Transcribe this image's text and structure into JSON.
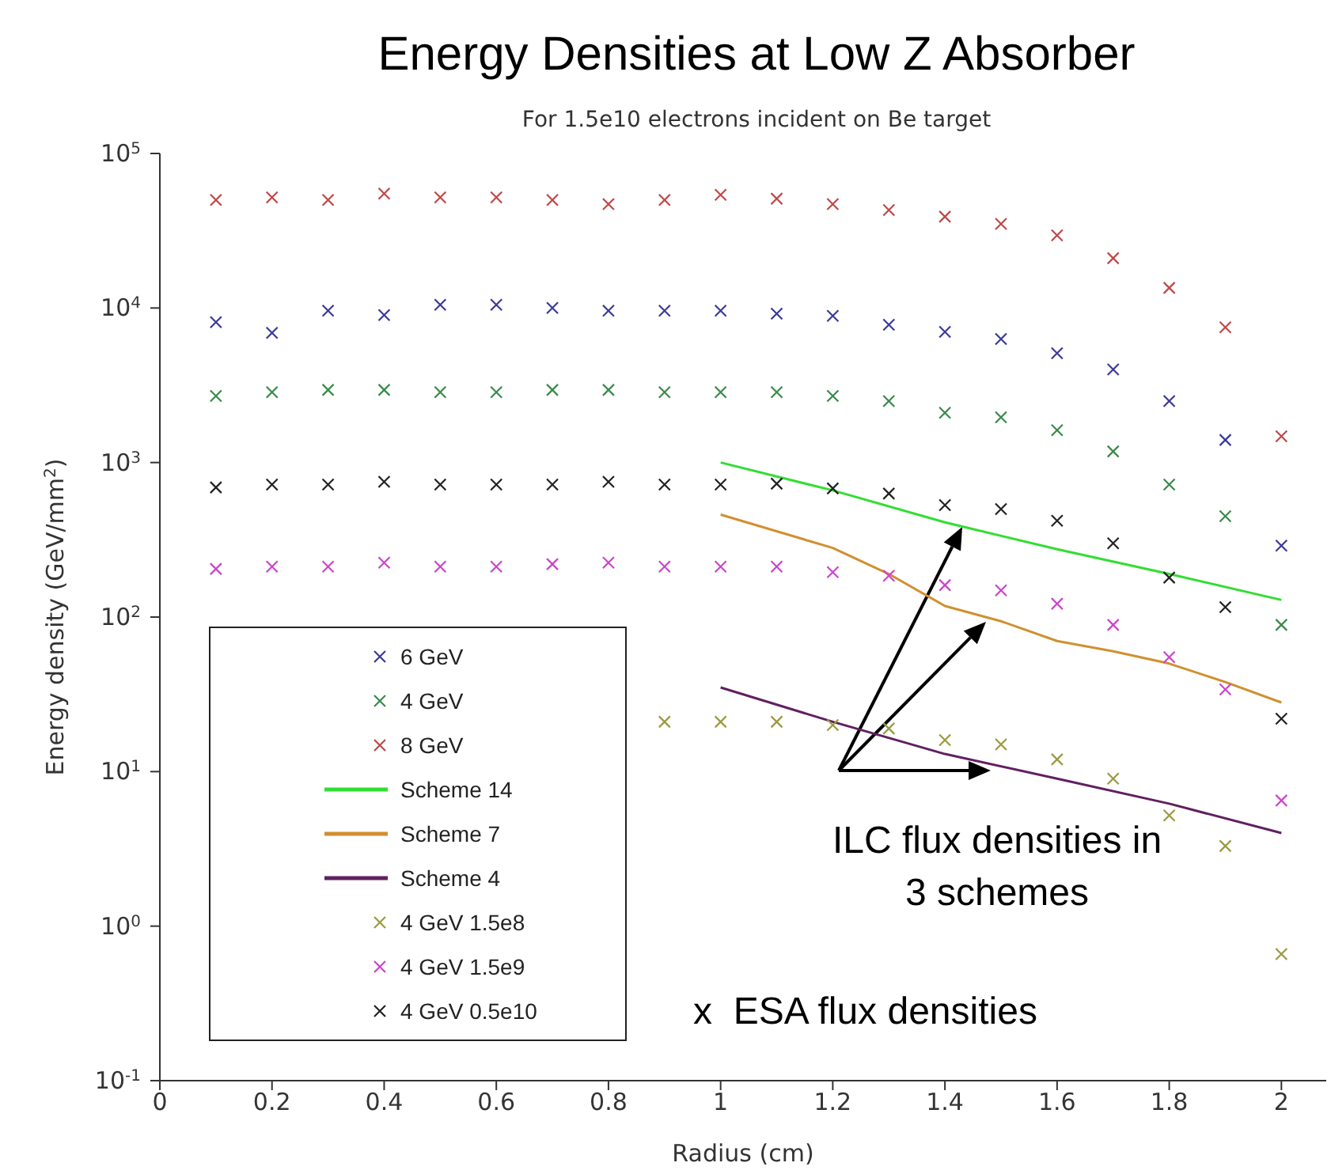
{
  "chart_data": {
    "type": "scatter",
    "title": "Energy Densities at Low Z Absorber",
    "subtitle": "For 1.5e10 electrons incident on Be target",
    "xlabel": "Radius (cm)",
    "ylabel": "Energy density (GeV/mm$^{2}$)",
    "x": [
      0.1,
      0.2,
      0.3,
      0.4,
      0.5,
      0.6,
      0.7,
      0.8,
      0.9,
      1.0,
      1.1,
      1.2,
      1.3,
      1.4,
      1.5,
      1.6,
      1.7,
      1.8,
      1.9,
      2.0
    ],
    "series": [
      {
        "name": "6 GeV",
        "color": "#3a3a9a",
        "values": [
          8100,
          6900,
          9600,
          9000,
          10500,
          10500,
          10000,
          9600,
          9600,
          9600,
          9200,
          8900,
          7800,
          7000,
          6300,
          5100,
          4000,
          2500,
          1400,
          290
        ]
      },
      {
        "name": "4 GeV",
        "color": "#3a8a4a",
        "values": [
          2700,
          2850,
          2950,
          2950,
          2850,
          2850,
          2950,
          2950,
          2850,
          2850,
          2850,
          2700,
          2500,
          2100,
          1960,
          1620,
          1180,
          720,
          450,
          89
        ]
      },
      {
        "name": "8 GeV",
        "color": "#c04848",
        "values": [
          50000,
          52000,
          50000,
          55000,
          52000,
          52000,
          50000,
          47000,
          50000,
          54000,
          51000,
          47000,
          43000,
          39000,
          35000,
          29500,
          21000,
          13500,
          7500,
          1480
        ]
      },
      {
        "name": "Scheme 14",
        "type": "line",
        "marker": "none",
        "color": "#33dd33",
        "x": [
          1.0,
          1.2,
          1.4,
          1.6,
          1.8,
          2.0
        ],
        "values": [
          1000,
          660,
          410,
          275,
          190,
          129
        ]
      },
      {
        "name": "Scheme 7",
        "type": "line",
        "marker": "none",
        "color": "#d09030",
        "x": [
          1.0,
          1.2,
          1.3,
          1.4,
          1.5,
          1.6,
          1.7,
          1.8,
          1.9,
          2.0
        ],
        "values": [
          460,
          280,
          190,
          118,
          94,
          70,
          60,
          50,
          38,
          28
        ]
      },
      {
        "name": "Scheme 4",
        "type": "line",
        "marker": "none",
        "color": "#602060",
        "x": [
          1.0,
          1.2,
          1.4,
          1.6,
          1.8,
          2.0
        ],
        "values": [
          35,
          21,
          13,
          9,
          6.2,
          4.0
        ]
      },
      {
        "name": "4 GeV 1.5e8",
        "color": "#9a9a40",
        "values": [
          null,
          null,
          null,
          null,
          null,
          null,
          null,
          null,
          21,
          21,
          21,
          20,
          19,
          16,
          15,
          12,
          9,
          5.2,
          3.3,
          0.66
        ]
      },
      {
        "name": "4 GeV 1.5e9",
        "color": "#cc44cc",
        "values": [
          205,
          212,
          212,
          225,
          212,
          212,
          220,
          225,
          212,
          212,
          212,
          195,
          185,
          161,
          149,
          122,
          89,
          55,
          34,
          6.5
        ]
      },
      {
        "name": "4 GeV 0.5e10",
        "color": "#222222",
        "values": [
          690,
          720,
          720,
          750,
          720,
          720,
          720,
          750,
          720,
          720,
          730,
          680,
          630,
          530,
          500,
          420,
          300,
          180,
          116,
          22
        ]
      }
    ],
    "xlim": [
      0,
      2.08
    ],
    "xticks": [
      0,
      0.2,
      0.4,
      0.6,
      0.8,
      1,
      1.2,
      1.4,
      1.6,
      1.8,
      2
    ],
    "ylim": [
      0.1,
      100000
    ],
    "log": "y",
    "yticks": [
      {
        "value": 0.1,
        "label": "10$^{-1}$"
      },
      {
        "value": 1,
        "label": "10$^{0}$"
      },
      {
        "value": 10,
        "label": "10$^{1}$"
      },
      {
        "value": 100,
        "label": "10$^{2}$"
      },
      {
        "value": 1000,
        "label": "10$^{3}$"
      },
      {
        "value": 10000,
        "label": "10$^{4}$"
      },
      {
        "value": 100000,
        "label": "10$^{5}$"
      }
    ],
    "marker": "cross",
    "grid": false,
    "legend": "bottom left",
    "annotations": [
      "ILC flux densities in 3 schemes",
      "x  ESA flux densities"
    ]
  }
}
